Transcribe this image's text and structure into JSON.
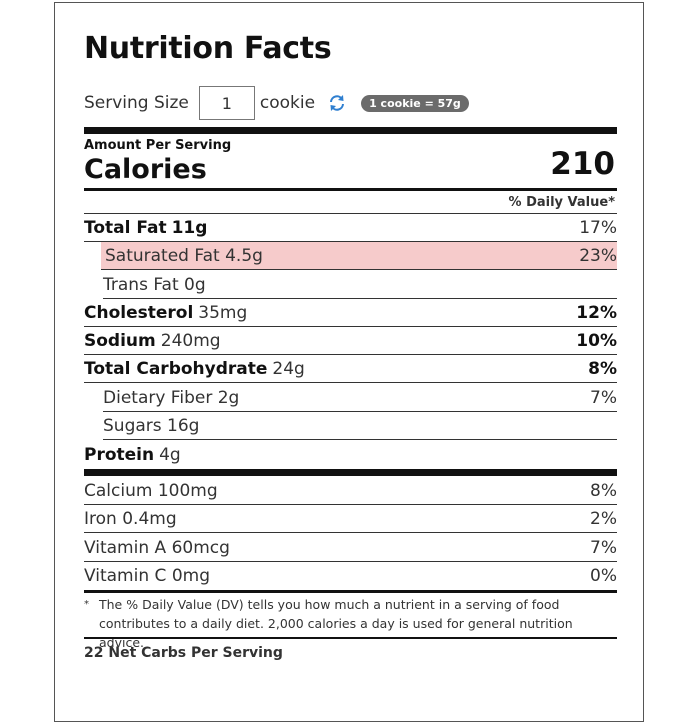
{
  "label": {
    "title": "Nutrition Facts",
    "serving_label": "Serving Size",
    "serving_quantity": "1",
    "serving_unit": "cookie",
    "serving_weight": "1 cookie = 57g",
    "amount_per_serving": "Amount Per Serving",
    "calories_label": "Calories",
    "calories_value": "210",
    "daily_value_header": "% Daily Value*",
    "nutrients": [
      {
        "name": "Total Fat",
        "amount": "11g",
        "dv": "17%"
      },
      {
        "name": "Saturated Fat",
        "amount": "4.5g",
        "dv": "23%"
      },
      {
        "name": "Trans Fat",
        "amount": "0g",
        "dv": ""
      },
      {
        "name": "Cholesterol",
        "amount": "35mg",
        "dv": "12%"
      },
      {
        "name": "Sodium",
        "amount": "240mg",
        "dv": "10%"
      },
      {
        "name": "Total Carbohydrate",
        "amount": "24g",
        "dv": "8%"
      },
      {
        "name": "Dietary Fiber",
        "amount": "2g",
        "dv": "7%"
      },
      {
        "name": "Sugars",
        "amount": "16g",
        "dv": ""
      },
      {
        "name": "Protein",
        "amount": "4g",
        "dv": ""
      }
    ],
    "vitamins": [
      {
        "name": "Calcium",
        "amount": "100mg",
        "dv": "8%"
      },
      {
        "name": "Iron",
        "amount": "0.4mg",
        "dv": "2%"
      },
      {
        "name": "Vitamin A",
        "amount": "60mcg",
        "dv": "7%"
      },
      {
        "name": "Vitamin C",
        "amount": "0mg",
        "dv": "0%"
      }
    ],
    "footnote_mark": "*",
    "footnote": "The % Daily Value (DV) tells you how much a nutrient in a serving of food contributes to a daily diet. 2,000 calories a day is used for general nutrition advice.",
    "net_carbs": "22 Net Carbs Per Serving"
  },
  "colors": {
    "highlight": "#f6cbcb",
    "refresh_icon": "#2f7fd0",
    "pill_bg": "#6b6b6b"
  },
  "icons": {
    "refresh": "refresh-icon"
  }
}
